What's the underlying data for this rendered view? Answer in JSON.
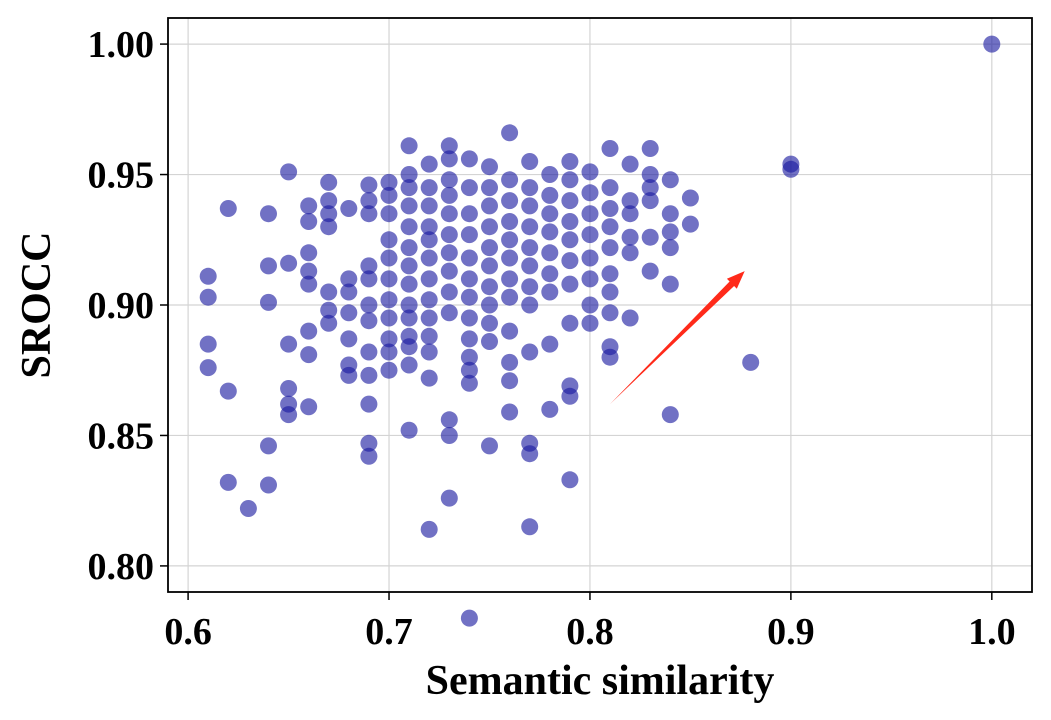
{
  "chart_data": {
    "type": "scatter",
    "title": "",
    "xlabel": "Semantic similarity",
    "ylabel": "SROCC",
    "xlim": [
      0.59,
      1.02
    ],
    "ylim": [
      0.79,
      1.01
    ],
    "x_ticks": [
      0.6,
      0.7,
      0.8,
      0.9,
      1.0
    ],
    "y_ticks": [
      0.8,
      0.85,
      0.9,
      0.95,
      1.0
    ],
    "x_tick_labels": [
      "0.6",
      "0.7",
      "0.8",
      "0.9",
      "1.0"
    ],
    "y_tick_labels": [
      "0.80",
      "0.85",
      "0.90",
      "0.95",
      "1.00"
    ],
    "grid": true,
    "legend": "none",
    "point_color": "#1a1aa0",
    "arrow_color": "#ff2a1a",
    "annotations": [
      {
        "type": "arrow",
        "from": [
          0.81,
          0.862
        ],
        "to": [
          0.877,
          0.913
        ]
      }
    ],
    "points": [
      [
        0.61,
        0.911
      ],
      [
        0.61,
        0.903
      ],
      [
        0.61,
        0.885
      ],
      [
        0.61,
        0.876
      ],
      [
        0.62,
        0.937
      ],
      [
        0.62,
        0.867
      ],
      [
        0.62,
        0.832
      ],
      [
        0.63,
        0.822
      ],
      [
        0.64,
        0.935
      ],
      [
        0.64,
        0.915
      ],
      [
        0.64,
        0.901
      ],
      [
        0.64,
        0.846
      ],
      [
        0.64,
        0.831
      ],
      [
        0.65,
        0.951
      ],
      [
        0.65,
        0.916
      ],
      [
        0.65,
        0.885
      ],
      [
        0.65,
        0.868
      ],
      [
        0.65,
        0.862
      ],
      [
        0.65,
        0.858
      ],
      [
        0.66,
        0.938
      ],
      [
        0.66,
        0.932
      ],
      [
        0.66,
        0.92
      ],
      [
        0.66,
        0.913
      ],
      [
        0.66,
        0.908
      ],
      [
        0.66,
        0.89
      ],
      [
        0.66,
        0.881
      ],
      [
        0.66,
        0.861
      ],
      [
        0.67,
        0.947
      ],
      [
        0.67,
        0.94
      ],
      [
        0.67,
        0.935
      ],
      [
        0.67,
        0.93
      ],
      [
        0.67,
        0.905
      ],
      [
        0.67,
        0.898
      ],
      [
        0.67,
        0.893
      ],
      [
        0.68,
        0.937
      ],
      [
        0.68,
        0.91
      ],
      [
        0.68,
        0.905
      ],
      [
        0.68,
        0.897
      ],
      [
        0.68,
        0.887
      ],
      [
        0.68,
        0.877
      ],
      [
        0.68,
        0.873
      ],
      [
        0.69,
        0.946
      ],
      [
        0.69,
        0.94
      ],
      [
        0.69,
        0.935
      ],
      [
        0.69,
        0.915
      ],
      [
        0.69,
        0.91
      ],
      [
        0.69,
        0.9
      ],
      [
        0.69,
        0.894
      ],
      [
        0.69,
        0.882
      ],
      [
        0.69,
        0.873
      ],
      [
        0.69,
        0.862
      ],
      [
        0.69,
        0.847
      ],
      [
        0.69,
        0.842
      ],
      [
        0.7,
        0.947
      ],
      [
        0.7,
        0.942
      ],
      [
        0.7,
        0.935
      ],
      [
        0.7,
        0.925
      ],
      [
        0.7,
        0.918
      ],
      [
        0.7,
        0.91
      ],
      [
        0.7,
        0.902
      ],
      [
        0.7,
        0.895
      ],
      [
        0.7,
        0.887
      ],
      [
        0.7,
        0.882
      ],
      [
        0.7,
        0.875
      ],
      [
        0.71,
        0.961
      ],
      [
        0.71,
        0.95
      ],
      [
        0.71,
        0.945
      ],
      [
        0.71,
        0.938
      ],
      [
        0.71,
        0.93
      ],
      [
        0.71,
        0.922
      ],
      [
        0.71,
        0.915
      ],
      [
        0.71,
        0.908
      ],
      [
        0.71,
        0.9
      ],
      [
        0.71,
        0.895
      ],
      [
        0.71,
        0.888
      ],
      [
        0.71,
        0.884
      ],
      [
        0.71,
        0.877
      ],
      [
        0.71,
        0.852
      ],
      [
        0.72,
        0.954
      ],
      [
        0.72,
        0.945
      ],
      [
        0.72,
        0.938
      ],
      [
        0.72,
        0.93
      ],
      [
        0.72,
        0.925
      ],
      [
        0.72,
        0.918
      ],
      [
        0.72,
        0.91
      ],
      [
        0.72,
        0.902
      ],
      [
        0.72,
        0.895
      ],
      [
        0.72,
        0.888
      ],
      [
        0.72,
        0.882
      ],
      [
        0.72,
        0.872
      ],
      [
        0.72,
        0.814
      ],
      [
        0.73,
        0.961
      ],
      [
        0.73,
        0.956
      ],
      [
        0.73,
        0.948
      ],
      [
        0.73,
        0.942
      ],
      [
        0.73,
        0.935
      ],
      [
        0.73,
        0.927
      ],
      [
        0.73,
        0.92
      ],
      [
        0.73,
        0.913
      ],
      [
        0.73,
        0.905
      ],
      [
        0.73,
        0.897
      ],
      [
        0.73,
        0.856
      ],
      [
        0.73,
        0.85
      ],
      [
        0.73,
        0.826
      ],
      [
        0.74,
        0.956
      ],
      [
        0.74,
        0.945
      ],
      [
        0.74,
        0.935
      ],
      [
        0.74,
        0.927
      ],
      [
        0.74,
        0.918
      ],
      [
        0.74,
        0.91
      ],
      [
        0.74,
        0.903
      ],
      [
        0.74,
        0.895
      ],
      [
        0.74,
        0.887
      ],
      [
        0.74,
        0.88
      ],
      [
        0.74,
        0.875
      ],
      [
        0.74,
        0.87
      ],
      [
        0.74,
        0.78
      ],
      [
        0.75,
        0.953
      ],
      [
        0.75,
        0.945
      ],
      [
        0.75,
        0.938
      ],
      [
        0.75,
        0.93
      ],
      [
        0.75,
        0.922
      ],
      [
        0.75,
        0.915
      ],
      [
        0.75,
        0.907
      ],
      [
        0.75,
        0.9
      ],
      [
        0.75,
        0.893
      ],
      [
        0.75,
        0.886
      ],
      [
        0.75,
        0.846
      ],
      [
        0.76,
        0.966
      ],
      [
        0.76,
        0.948
      ],
      [
        0.76,
        0.94
      ],
      [
        0.76,
        0.932
      ],
      [
        0.76,
        0.925
      ],
      [
        0.76,
        0.918
      ],
      [
        0.76,
        0.91
      ],
      [
        0.76,
        0.903
      ],
      [
        0.76,
        0.89
      ],
      [
        0.76,
        0.878
      ],
      [
        0.76,
        0.871
      ],
      [
        0.76,
        0.859
      ],
      [
        0.77,
        0.955
      ],
      [
        0.77,
        0.945
      ],
      [
        0.77,
        0.938
      ],
      [
        0.77,
        0.93
      ],
      [
        0.77,
        0.922
      ],
      [
        0.77,
        0.915
      ],
      [
        0.77,
        0.907
      ],
      [
        0.77,
        0.9
      ],
      [
        0.77,
        0.882
      ],
      [
        0.77,
        0.847
      ],
      [
        0.77,
        0.843
      ],
      [
        0.77,
        0.815
      ],
      [
        0.78,
        0.95
      ],
      [
        0.78,
        0.942
      ],
      [
        0.78,
        0.935
      ],
      [
        0.78,
        0.928
      ],
      [
        0.78,
        0.92
      ],
      [
        0.78,
        0.912
      ],
      [
        0.78,
        0.905
      ],
      [
        0.78,
        0.885
      ],
      [
        0.78,
        0.86
      ],
      [
        0.79,
        0.955
      ],
      [
        0.79,
        0.948
      ],
      [
        0.79,
        0.94
      ],
      [
        0.79,
        0.932
      ],
      [
        0.79,
        0.925
      ],
      [
        0.79,
        0.917
      ],
      [
        0.79,
        0.908
      ],
      [
        0.79,
        0.893
      ],
      [
        0.79,
        0.869
      ],
      [
        0.79,
        0.865
      ],
      [
        0.79,
        0.833
      ],
      [
        0.8,
        0.951
      ],
      [
        0.8,
        0.943
      ],
      [
        0.8,
        0.935
      ],
      [
        0.8,
        0.927
      ],
      [
        0.8,
        0.918
      ],
      [
        0.8,
        0.91
      ],
      [
        0.8,
        0.9
      ],
      [
        0.8,
        0.893
      ],
      [
        0.81,
        0.96
      ],
      [
        0.81,
        0.945
      ],
      [
        0.81,
        0.937
      ],
      [
        0.81,
        0.93
      ],
      [
        0.81,
        0.922
      ],
      [
        0.81,
        0.912
      ],
      [
        0.81,
        0.905
      ],
      [
        0.81,
        0.897
      ],
      [
        0.81,
        0.884
      ],
      [
        0.81,
        0.88
      ],
      [
        0.82,
        0.954
      ],
      [
        0.82,
        0.94
      ],
      [
        0.82,
        0.935
      ],
      [
        0.82,
        0.926
      ],
      [
        0.82,
        0.92
      ],
      [
        0.82,
        0.895
      ],
      [
        0.83,
        0.96
      ],
      [
        0.83,
        0.95
      ],
      [
        0.83,
        0.945
      ],
      [
        0.83,
        0.94
      ],
      [
        0.83,
        0.926
      ],
      [
        0.83,
        0.913
      ],
      [
        0.84,
        0.948
      ],
      [
        0.84,
        0.935
      ],
      [
        0.84,
        0.928
      ],
      [
        0.84,
        0.922
      ],
      [
        0.84,
        0.908
      ],
      [
        0.84,
        0.858
      ],
      [
        0.85,
        0.941
      ],
      [
        0.85,
        0.931
      ],
      [
        0.88,
        0.878
      ],
      [
        0.9,
        0.954
      ],
      [
        0.9,
        0.952
      ],
      [
        1.0,
        1.0
      ]
    ]
  }
}
